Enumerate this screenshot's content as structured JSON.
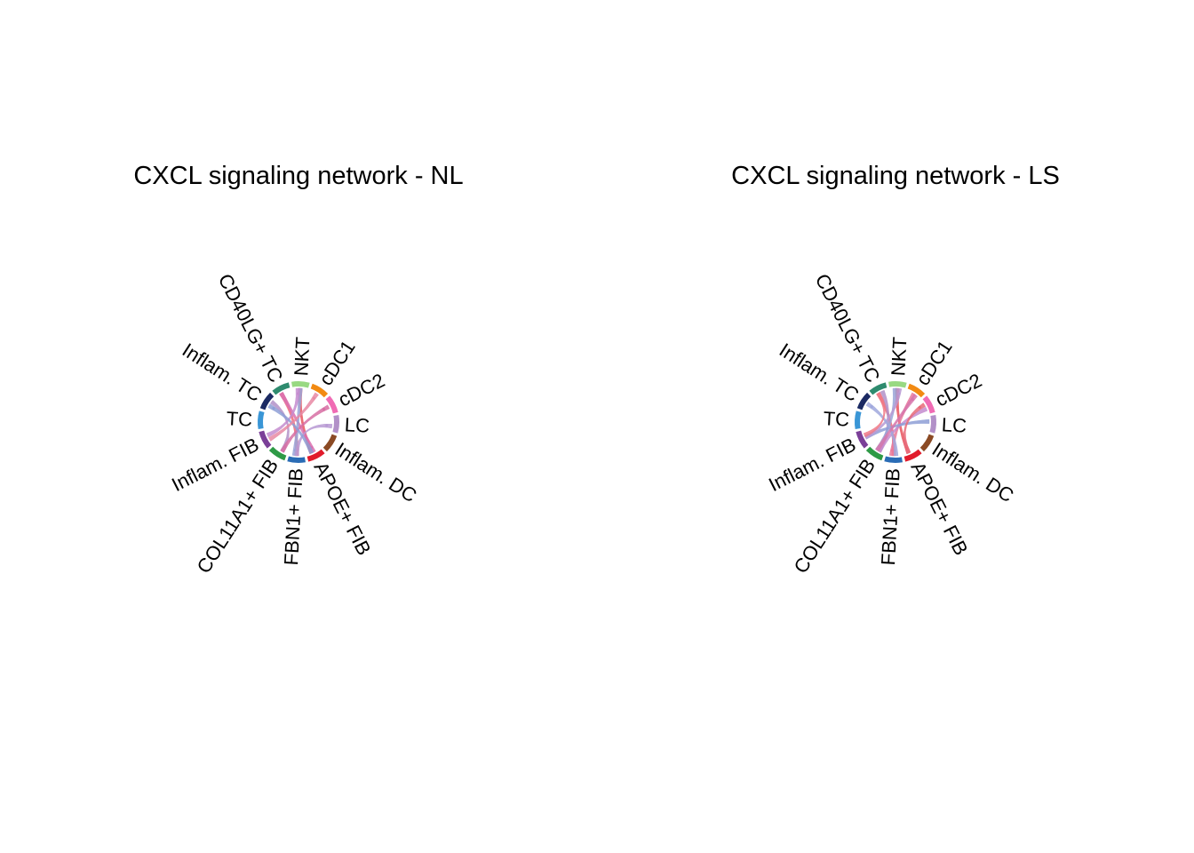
{
  "chart_data": [
    {
      "type": "chord",
      "title": "CXCL signaling network - NL",
      "sectors": [
        {
          "name": "TC",
          "color": "#3a96d6"
        },
        {
          "name": "Inflam. TC",
          "color": "#1b2a63"
        },
        {
          "name": "CD40LG+ TC",
          "color": "#2e8b6e"
        },
        {
          "name": "NKT",
          "color": "#98d982"
        },
        {
          "name": "cDC1",
          "color": "#f28a12"
        },
        {
          "name": "cDC2",
          "color": "#f06bb4"
        },
        {
          "name": "LC",
          "color": "#b290c8"
        },
        {
          "name": "Inflam. DC",
          "color": "#8b4a24"
        },
        {
          "name": "APOE+ FIB",
          "color": "#e11b2b"
        },
        {
          "name": "FBN1+ FIB",
          "color": "#2a6cb5"
        },
        {
          "name": "COL11A1+ FIB",
          "color": "#2e9a46"
        },
        {
          "name": "Inflam. FIB",
          "color": "#7b3f98"
        }
      ],
      "links": [
        {
          "from": "CD40LG+ TC",
          "to": "FBN1+ FIB",
          "color": "#f06b78"
        },
        {
          "from": "NKT",
          "to": "APOE+ FIB",
          "color": "#e8565f"
        },
        {
          "from": "Inflam. TC",
          "to": "COL11A1+ FIB",
          "color": "#b290c8"
        },
        {
          "from": "CD40LG+ TC",
          "to": "APOE+ FIB",
          "color": "#d970b0"
        },
        {
          "from": "NKT",
          "to": "FBN1+ FIB",
          "color": "#9aa6d8"
        },
        {
          "from": "Inflam. FIB",
          "to": "NKT",
          "color": "#c48ccf"
        },
        {
          "from": "COL11A1+ FIB",
          "to": "cDC2",
          "color": "#d76fa3"
        },
        {
          "from": "FBN1+ FIB",
          "to": "LC",
          "color": "#b89ad4"
        },
        {
          "from": "APOE+ FIB",
          "to": "Inflam. TC",
          "color": "#8e9fd6"
        },
        {
          "from": "Inflam. FIB",
          "to": "cDC1",
          "color": "#e88aa5"
        }
      ]
    },
    {
      "type": "chord",
      "title": "CXCL signaling network - LS",
      "sectors": [
        {
          "name": "TC",
          "color": "#3a96d6"
        },
        {
          "name": "Inflam. TC",
          "color": "#1b2a63"
        },
        {
          "name": "CD40LG+ TC",
          "color": "#2e8b6e"
        },
        {
          "name": "NKT",
          "color": "#98d982"
        },
        {
          "name": "cDC1",
          "color": "#f28a12"
        },
        {
          "name": "cDC2",
          "color": "#f06bb4"
        },
        {
          "name": "LC",
          "color": "#b290c8"
        },
        {
          "name": "Inflam. DC",
          "color": "#8b4a24"
        },
        {
          "name": "APOE+ FIB",
          "color": "#e11b2b"
        },
        {
          "name": "FBN1+ FIB",
          "color": "#2a6cb5"
        },
        {
          "name": "COL11A1+ FIB",
          "color": "#2e9a46"
        },
        {
          "name": "Inflam. FIB",
          "color": "#7b3f98"
        }
      ],
      "links": [
        {
          "from": "CD40LG+ TC",
          "to": "FBN1+ FIB",
          "color": "#f06b78"
        },
        {
          "from": "NKT",
          "to": "APOE+ FIB",
          "color": "#e8565f"
        },
        {
          "from": "CD40LG+ TC",
          "to": "COL11A1+ FIB",
          "color": "#b290c8"
        },
        {
          "from": "NKT",
          "to": "COL11A1+ FIB",
          "color": "#9aa6d8"
        },
        {
          "from": "cDC1",
          "to": "FBN1+ FIB",
          "color": "#e97a9c"
        },
        {
          "from": "cDC2",
          "to": "COL11A1+ FIB",
          "color": "#c48ccf"
        },
        {
          "from": "LC",
          "to": "Inflam. FIB",
          "color": "#8e9fd6"
        },
        {
          "from": "Inflam. FIB",
          "to": "NKT",
          "color": "#b89ad4"
        },
        {
          "from": "APOE+ FIB",
          "to": "cDC2",
          "color": "#e86b7a"
        },
        {
          "from": "FBN1+ FIB",
          "to": "Inflam. TC",
          "color": "#a0a8dd"
        },
        {
          "from": "COL11A1+ FIB",
          "to": "cDC1",
          "color": "#d776ab"
        },
        {
          "from": "Inflam. FIB",
          "to": "CD40LG+ TC",
          "color": "#f07a86"
        }
      ]
    }
  ]
}
